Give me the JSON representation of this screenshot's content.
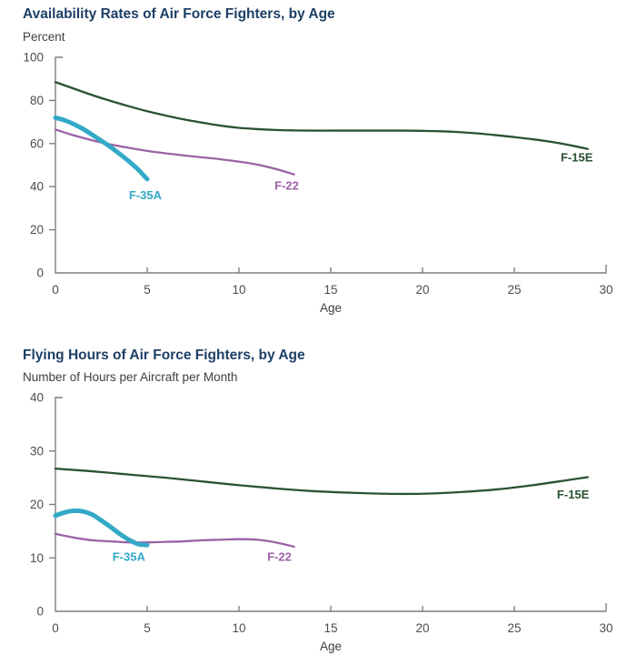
{
  "page": {
    "background": "#ffffff",
    "title_color": "#1E3F66",
    "subtitle_color": "#404040"
  },
  "chart_data": [
    {
      "type": "line",
      "title": "Availability Rates of Air Force Fighters, by Age",
      "subtitle": "Percent",
      "xlabel": "Age",
      "ylabel": "Percent",
      "xlim": [
        0,
        30
      ],
      "ylim": [
        0,
        100
      ],
      "xticks": [
        0,
        5,
        10,
        15,
        20,
        25,
        30
      ],
      "yticks": [
        0,
        20,
        40,
        60,
        80,
        100
      ],
      "grid": false,
      "legend": "inline-labels",
      "axis_color": "#7F7F7F",
      "tick_color": "#4D4D4D",
      "label_color": "#404040",
      "series": [
        {
          "name": "F-15E",
          "color": "#2B5233",
          "line_width": 2.3,
          "x": [
            0,
            1,
            2,
            3,
            4,
            5,
            6,
            7,
            8,
            9,
            10,
            11,
            12,
            13,
            14,
            15,
            16,
            17,
            18,
            19,
            20,
            21,
            22,
            23,
            24,
            25,
            26,
            27,
            28,
            29
          ],
          "y": [
            88.5,
            85.5,
            82.5,
            79.8,
            77.3,
            75,
            73,
            71.2,
            69.7,
            68.3,
            67.3,
            66.7,
            66.3,
            66.1,
            66,
            66,
            66,
            66,
            66,
            66,
            65.9,
            65.7,
            65.3,
            64.7,
            63.9,
            63,
            62,
            60.8,
            59.3,
            57.5
          ],
          "label": {
            "text": "F-15E",
            "x": 28.4,
            "y": 53.5
          }
        },
        {
          "name": "F-22",
          "color": "#9B62A5",
          "line_width": 2.3,
          "x": [
            0,
            1,
            2,
            3,
            4,
            5,
            6,
            7,
            8,
            9,
            10,
            11,
            12,
            13
          ],
          "y": [
            66.5,
            63.8,
            61.5,
            59.6,
            58,
            56.6,
            55.5,
            54.5,
            53.6,
            52.7,
            51.6,
            50.2,
            48.2,
            45.7
          ],
          "label": {
            "text": "F-22",
            "x": 12.6,
            "y": 40.5
          }
        },
        {
          "name": "F-35A",
          "color": "#33A9C7",
          "line_width": 5,
          "x": [
            0,
            0.5,
            1,
            1.5,
            2,
            2.5,
            3,
            3.5,
            4,
            4.5,
            5
          ],
          "y": [
            72,
            70.8,
            69,
            66.8,
            64.1,
            61.3,
            58.4,
            55.2,
            51.8,
            48,
            43.5
          ],
          "label": {
            "text": "F-35A",
            "x": 4.9,
            "y": 36
          }
        }
      ]
    },
    {
      "type": "line",
      "title": "Flying Hours of Air Force Fighters, by Age",
      "subtitle": "Number of Hours per Aircraft per Month",
      "xlabel": "Age",
      "ylabel": "Number of Hours per Aircraft per Month",
      "xlim": [
        0,
        30
      ],
      "ylim": [
        0,
        40
      ],
      "xticks": [
        0,
        5,
        10,
        15,
        20,
        25,
        30
      ],
      "yticks": [
        0,
        10,
        20,
        30,
        40
      ],
      "grid": false,
      "legend": "inline-labels",
      "axis_color": "#7F7F7F",
      "tick_color": "#4D4D4D",
      "label_color": "#404040",
      "series": [
        {
          "name": "F-15E",
          "color": "#2B5233",
          "line_width": 2.3,
          "x": [
            0,
            2,
            4,
            6,
            8,
            10,
            12,
            14,
            16,
            18,
            20,
            22,
            24,
            26,
            28,
            29
          ],
          "y": [
            26.7,
            26.2,
            25.6,
            25,
            24.3,
            23.6,
            23,
            22.5,
            22.2,
            22,
            22,
            22.3,
            22.8,
            23.6,
            24.6,
            25.1
          ],
          "label": {
            "text": "F-15E",
            "x": 28.2,
            "y": 21.9
          }
        },
        {
          "name": "F-22",
          "color": "#9B62A5",
          "line_width": 2.3,
          "x": [
            0,
            1,
            2,
            3,
            4,
            5,
            6,
            7,
            8,
            9,
            10,
            11,
            12,
            13
          ],
          "y": [
            14.5,
            13.8,
            13.3,
            13.1,
            12.9,
            12.9,
            13,
            13.1,
            13.3,
            13.4,
            13.5,
            13.4,
            12.9,
            12.1
          ],
          "label": {
            "text": "F-22",
            "x": 12.2,
            "y": 10.2
          }
        },
        {
          "name": "F-35A",
          "color": "#33A9C7",
          "line_width": 5,
          "x": [
            0,
            0.5,
            1,
            1.5,
            2,
            2.5,
            3,
            3.5,
            4,
            4.5,
            5
          ],
          "y": [
            17.9,
            18.5,
            18.8,
            18.7,
            18.1,
            17,
            15.8,
            14.5,
            13.4,
            12.6,
            12.4
          ],
          "label": {
            "text": "F-35A",
            "x": 4.0,
            "y": 10.2
          }
        }
      ]
    }
  ]
}
